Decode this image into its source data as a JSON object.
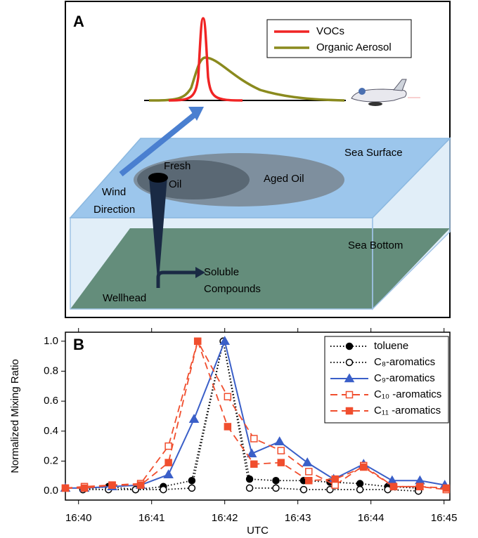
{
  "panel_a": {
    "label": "A",
    "legend": [
      "VOCs",
      "Organic Aerosol"
    ],
    "sea_surface": "Sea Surface",
    "fresh_oil": [
      "Fresh",
      "Oil"
    ],
    "aged_oil": "Aged Oil",
    "wind_direction": [
      "Wind",
      "Direction"
    ],
    "sea_bottom": "Sea Bottom",
    "soluble_compounds": [
      "Soluble",
      "Compounds"
    ],
    "wellhead": "Wellhead"
  },
  "chart_data": {
    "type": "line",
    "panel_label": "B",
    "x_label": "UTC",
    "y_label": "Normalized Mixing Ratio",
    "xlim": [
      39.82,
      45.08
    ],
    "xticks": [
      {
        "value": 40,
        "label": "16:40"
      },
      {
        "value": 41,
        "label": "16:41"
      },
      {
        "value": 42,
        "label": "16:42"
      },
      {
        "value": 43,
        "label": "16:43"
      },
      {
        "value": 44,
        "label": "16:44"
      },
      {
        "value": 45,
        "label": "16:45"
      }
    ],
    "ylim": [
      -0.06,
      1.06
    ],
    "yticks": [
      {
        "value": 0,
        "label": "0.0"
      },
      {
        "value": 0.2,
        "label": "0.2"
      },
      {
        "value": 0.4,
        "label": "0.4"
      },
      {
        "value": 0.6,
        "label": "0.6"
      },
      {
        "value": 0.8,
        "label": "0.8"
      },
      {
        "value": 1,
        "label": "1.0"
      }
    ],
    "series": [
      {
        "name": "toluene",
        "color": "#000000",
        "dash": "dotted",
        "marker": "circle",
        "filled": true,
        "x": [
          40.06,
          40.41,
          40.78,
          41.16,
          41.55,
          41.98,
          42.34,
          42.7,
          43.08,
          43.44,
          43.85,
          44.23,
          44.65
        ],
        "values": [
          0.01,
          0.03,
          0.01,
          0.03,
          0.07,
          1.0,
          0.08,
          0.07,
          0.07,
          0.06,
          0.05,
          0.03,
          0.02
        ]
      },
      {
        "name": "C₈-aromatics",
        "color": "#000000",
        "dash": "dotted",
        "marker": "circle",
        "filled": false,
        "x": [
          40.06,
          40.41,
          40.78,
          41.16,
          41.55,
          41.98,
          42.34,
          42.7,
          43.08,
          43.44,
          43.85,
          44.23,
          44.65
        ],
        "values": [
          0.01,
          0.01,
          0.01,
          0.01,
          0.02,
          1.0,
          0.02,
          0.02,
          0.01,
          0.01,
          0.01,
          0.01,
          0.0
        ]
      },
      {
        "name": "C₉-aromatics",
        "color": "#3a5fc8",
        "dash": "solid",
        "marker": "triangle",
        "filled": true,
        "x": [
          39.82,
          40.08,
          40.46,
          40.85,
          41.23,
          41.58,
          42.0,
          42.37,
          42.75,
          43.13,
          43.49,
          43.9,
          44.29,
          44.67,
          45.01
        ],
        "values": [
          0.02,
          0.02,
          0.03,
          0.04,
          0.11,
          0.48,
          1.0,
          0.25,
          0.33,
          0.19,
          0.08,
          0.18,
          0.07,
          0.07,
          0.04
        ]
      },
      {
        "name": "C₁₀ -aromatics",
        "color": "#f04e2e",
        "dash": "dashed",
        "marker": "square",
        "filled": false,
        "x": [
          39.82,
          40.08,
          40.46,
          40.85,
          41.23,
          41.63,
          42.04,
          42.4,
          42.77,
          43.15,
          43.51,
          43.9,
          44.31,
          44.67,
          45.03
        ],
        "values": [
          0.02,
          0.03,
          0.04,
          0.05,
          0.3,
          1.0,
          0.63,
          0.35,
          0.27,
          0.13,
          0.04,
          0.17,
          0.03,
          0.03,
          0.01
        ]
      },
      {
        "name": "C₁₁ -aromatics",
        "color": "#f04e2e",
        "dash": "dashed",
        "marker": "square",
        "filled": true,
        "x": [
          39.82,
          40.08,
          40.46,
          40.85,
          41.23,
          41.63,
          42.04,
          42.4,
          42.77,
          43.15,
          43.51,
          43.9,
          44.31,
          44.67,
          45.03
        ],
        "values": [
          0.02,
          0.02,
          0.04,
          0.04,
          0.19,
          1.0,
          0.43,
          0.18,
          0.19,
          0.07,
          0.08,
          0.16,
          0.03,
          0.03,
          0.02
        ]
      }
    ],
    "legend_position": "upper right"
  }
}
